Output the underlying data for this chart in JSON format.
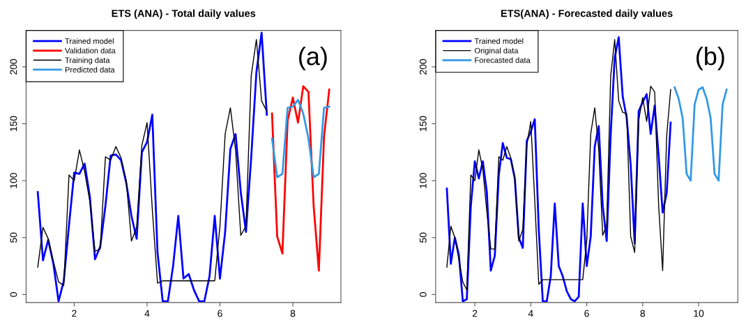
{
  "chart_data": [
    {
      "type": "line",
      "title": "ETS (ANA) - Total daily values",
      "annotations": [
        "(a)"
      ],
      "legend": "top left",
      "grid": false,
      "marker": "none",
      "line_style": "solid",
      "xlim": [
        0.68,
        9.32
      ],
      "xticks": [
        2,
        4,
        6,
        8
      ],
      "ylim": [
        -7,
        232
      ],
      "yticks": [
        0,
        50,
        100,
        150,
        200
      ],
      "series": [
        {
          "name": "Trained model",
          "color": "#0000ff",
          "x": [
            1,
            1.143,
            1.286,
            1.429,
            1.571,
            1.714,
            1.857,
            2,
            2.143,
            2.286,
            2.429,
            2.571,
            2.714,
            2.857,
            3,
            3.143,
            3.286,
            3.429,
            3.571,
            3.714,
            3.857,
            4,
            4.143,
            4.286,
            4.429,
            4.571,
            4.714,
            4.857,
            5,
            5.143,
            5.286,
            5.429,
            5.571,
            5.714,
            5.857,
            6,
            6.143,
            6.286,
            6.429,
            6.571,
            6.714,
            6.857,
            7,
            7.143,
            7.286
          ],
          "values": [
            90,
            30,
            48,
            27,
            -6,
            12,
            61,
            107,
            106,
            115,
            86,
            31,
            42,
            78,
            122,
            123,
            118,
            98,
            69,
            49,
            125,
            134,
            158,
            37,
            -6,
            -6,
            25,
            69,
            14,
            18,
            4,
            -6,
            -6,
            16,
            69,
            14,
            55,
            128,
            141,
            90,
            55,
            120,
            195,
            230,
            158
          ]
        },
        {
          "name": "Validation data",
          "color": "#ff0000",
          "x": [
            7.429,
            7.571,
            7.714,
            7.857,
            8,
            8.143,
            8.286,
            8.429,
            8.571,
            8.714,
            8.857,
            9
          ],
          "values": [
            159,
            51,
            36,
            153,
            173,
            151,
            183,
            178,
            78,
            21,
            139,
            180
          ]
        },
        {
          "name": "Training data",
          "color": "#000000",
          "x": [
            1,
            1.143,
            1.286,
            1.429,
            1.571,
            1.714,
            1.857,
            2,
            2.143,
            2.286,
            2.429,
            2.571,
            2.714,
            2.857,
            3,
            3.143,
            3.286,
            3.429,
            3.571,
            3.714,
            3.857,
            4,
            4.143,
            4.286,
            4.429,
            4.571,
            4.714,
            4.857,
            5,
            5.143,
            5.286,
            5.429,
            5.571,
            5.714,
            5.857,
            6,
            6.143,
            6.286,
            6.429,
            6.571,
            6.714,
            6.857,
            7,
            7.143,
            7.286
          ],
          "values": [
            24,
            59,
            49,
            29,
            11,
            8,
            105,
            100,
            127,
            108,
            82,
            38,
            40,
            121,
            118,
            130,
            120,
            100,
            47,
            59,
            131,
            151,
            75,
            10,
            12,
            12,
            12,
            12,
            12,
            12,
            12,
            12,
            12,
            12,
            12,
            60,
            141,
            164,
            127,
            52,
            60,
            192,
            224,
            170,
            161
          ]
        },
        {
          "name": "Predicted data",
          "color": "#3399e6",
          "x": [
            7.429,
            7.571,
            7.714,
            7.857,
            8,
            8.143,
            8.286,
            8.429,
            8.571,
            8.714,
            8.857,
            9
          ],
          "values": [
            137,
            103,
            106,
            164,
            165,
            171,
            159,
            137,
            103,
            106,
            164,
            165
          ]
        }
      ]
    },
    {
      "type": "line",
      "title": "ETS(ANA) - Forecasted daily values",
      "annotations": [
        "(b)"
      ],
      "legend": "top left",
      "grid": false,
      "marker": "none",
      "line_style": "solid",
      "xlim": [
        0.6,
        11.4
      ],
      "xticks": [
        2,
        4,
        6,
        8,
        10
      ],
      "ylim": [
        -7,
        232
      ],
      "yticks": [
        0,
        50,
        100,
        150,
        200
      ],
      "series": [
        {
          "name": "Trained model",
          "color": "#0000ff",
          "x": [
            1,
            1.143,
            1.286,
            1.429,
            1.571,
            1.714,
            1.857,
            2,
            2.143,
            2.286,
            2.429,
            2.571,
            2.714,
            2.857,
            3,
            3.143,
            3.286,
            3.429,
            3.571,
            3.714,
            3.857,
            4,
            4.143,
            4.286,
            4.429,
            4.571,
            4.714,
            4.857,
            5,
            5.143,
            5.286,
            5.429,
            5.571,
            5.714,
            5.857,
            6,
            6.143,
            6.286,
            6.429,
            6.571,
            6.714,
            6.857,
            7,
            7.143,
            7.286,
            7.429,
            7.571,
            7.714,
            7.857,
            8,
            8.143,
            8.286,
            8.429,
            8.571,
            8.714,
            8.857,
            9
          ],
          "values": [
            93,
            27,
            50,
            35,
            -6,
            -4,
            78,
            117,
            102,
            117,
            90,
            21,
            34,
            105,
            133,
            120,
            119,
            102,
            50,
            41,
            135,
            143,
            154,
            57,
            -6,
            -6,
            16,
            80,
            25,
            16,
            3,
            -4,
            -6,
            -2,
            80,
            25,
            51,
            130,
            148,
            78,
            47,
            141,
            208,
            226,
            174,
            155,
            114,
            45,
            161,
            169,
            176,
            141,
            166,
            122,
            72,
            89,
            151
          ]
        },
        {
          "name": "Original data",
          "color": "#000000",
          "x": [
            1,
            1.143,
            1.286,
            1.429,
            1.571,
            1.714,
            1.857,
            2,
            2.143,
            2.286,
            2.429,
            2.571,
            2.714,
            2.857,
            3,
            3.143,
            3.286,
            3.429,
            3.571,
            3.714,
            3.857,
            4,
            4.143,
            4.286,
            4.429,
            4.571,
            4.714,
            4.857,
            5,
            5.143,
            5.286,
            5.429,
            5.571,
            5.714,
            5.857,
            6,
            6.143,
            6.286,
            6.429,
            6.571,
            6.714,
            6.857,
            7,
            7.143,
            7.286,
            7.429,
            7.571,
            7.714,
            7.857,
            8,
            8.143,
            8.286,
            8.429,
            8.571,
            8.714,
            8.857,
            9
          ],
          "values": [
            24,
            60,
            50,
            31,
            11,
            4,
            105,
            100,
            127,
            110,
            73,
            40,
            40,
            121,
            118,
            130,
            120,
            102,
            47,
            57,
            131,
            152,
            82,
            9,
            13,
            13,
            13,
            13,
            13,
            13,
            13,
            13,
            13,
            13,
            13,
            47,
            141,
            164,
            127,
            52,
            61,
            192,
            224,
            170,
            160,
            159,
            51,
            37,
            153,
            173,
            152,
            183,
            178,
            78,
            21,
            139,
            180
          ]
        },
        {
          "name": "Forecasted data",
          "color": "#3399e6",
          "x": [
            9.143,
            9.286,
            9.429,
            9.571,
            9.714,
            9.857,
            10,
            10.143,
            10.286,
            10.429,
            10.571,
            10.714,
            10.857,
            11
          ],
          "values": [
            182,
            172,
            155,
            106,
            100,
            167,
            180,
            182,
            172,
            155,
            106,
            100,
            167,
            180
          ]
        }
      ]
    }
  ]
}
